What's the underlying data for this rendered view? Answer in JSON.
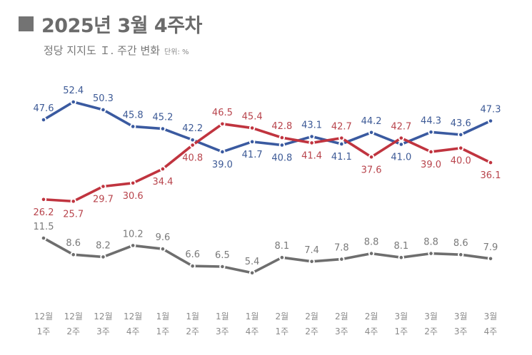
{
  "header": {
    "title": "2025년 3월 4주차",
    "subtitle": "정당 지지도 Ｉ. 주간 변화",
    "unit": "단위: %"
  },
  "chart_data": {
    "type": "line",
    "title": "2025년 3월 4주차",
    "subtitle": "정당 지지도 Ｉ. 주간 변화",
    "unit": "%",
    "xlabel": "",
    "ylabel": "",
    "grid": false,
    "legend": "none",
    "categories": [
      [
        "12월",
        "1주"
      ],
      [
        "12월",
        "2주"
      ],
      [
        "12월",
        "3주"
      ],
      [
        "12월",
        "4주"
      ],
      [
        "1월",
        "1주"
      ],
      [
        "1월",
        "2주"
      ],
      [
        "1월",
        "3주"
      ],
      [
        "1월",
        "4주"
      ],
      [
        "2월",
        "1주"
      ],
      [
        "2월",
        "2주"
      ],
      [
        "2월",
        "3주"
      ],
      [
        "2월",
        "4주"
      ],
      [
        "3월",
        "1주"
      ],
      [
        "3월",
        "2주"
      ],
      [
        "3월",
        "3주"
      ],
      [
        "3월",
        "4주"
      ]
    ],
    "series": [
      {
        "name": "blue",
        "color": "#3a5aa0",
        "label_color": "#3d5a96",
        "values": [
          47.6,
          52.4,
          50.3,
          45.8,
          45.2,
          42.2,
          39.0,
          41.7,
          40.8,
          43.1,
          41.1,
          44.2,
          41.0,
          44.3,
          43.6,
          47.3
        ],
        "label_pos": [
          "above",
          "above",
          "above",
          "above",
          "above",
          "above",
          "below",
          "below",
          "below",
          "above",
          "below",
          "above",
          "below",
          "above",
          "above",
          "above"
        ]
      },
      {
        "name": "red",
        "color": "#c0343f",
        "label_color": "#b8444c",
        "values": [
          26.2,
          25.7,
          29.7,
          30.6,
          34.4,
          40.8,
          46.5,
          45.4,
          42.8,
          41.4,
          42.7,
          37.6,
          42.7,
          39.0,
          40.0,
          36.1
        ],
        "label_pos": [
          "below",
          "below",
          "below",
          "below",
          "below",
          "below",
          "above",
          "above",
          "above",
          "below",
          "above",
          "below",
          "above",
          "below",
          "below",
          "below"
        ]
      },
      {
        "name": "gray",
        "color": "#6e6e6e",
        "label_color": "#7a7a7a",
        "values": [
          11.5,
          8.6,
          8.2,
          10.2,
          9.6,
          6.6,
          6.5,
          5.4,
          8.1,
          7.4,
          7.8,
          8.8,
          8.1,
          8.8,
          8.6,
          7.9
        ],
        "label_pos": [
          "above",
          "above",
          "above",
          "above",
          "above",
          "above",
          "above",
          "above",
          "above",
          "above",
          "above",
          "above",
          "above",
          "above",
          "above",
          "above"
        ]
      }
    ]
  }
}
